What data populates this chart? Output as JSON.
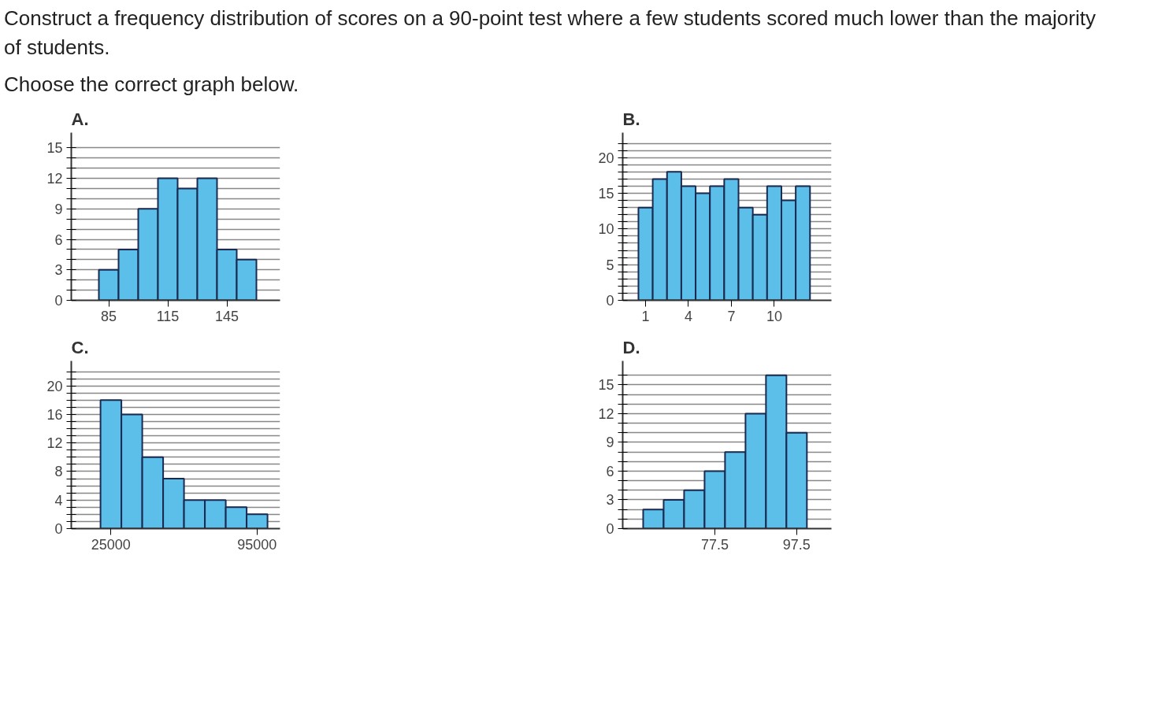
{
  "chart_data": [
    {
      "type": "histogram",
      "title": "A.",
      "annotations": [
        "Construct a frequency distribution of scores on a 90-point test where a few students scored much lower than the majority of students.",
        "Choose the correct graph below."
      ],
      "bins": [
        80,
        90,
        100,
        110,
        120,
        130,
        140,
        150,
        160
      ],
      "values": [
        3,
        5,
        9,
        12,
        11,
        12,
        5,
        4
      ],
      "color": "#5bbfea",
      "xlim": [
        66,
        172
      ],
      "xticks": [
        85,
        115,
        145
      ],
      "ylim": [
        0,
        16.5
      ],
      "yticks": [
        0,
        {
          "value": 1,
          "label": null
        },
        {
          "value": 2,
          "label": null
        },
        3,
        {
          "value": 4,
          "label": null
        },
        {
          "value": 5,
          "label": null
        },
        6,
        {
          "value": 7,
          "label": null
        },
        {
          "value": 8,
          "label": null
        },
        9,
        {
          "value": 10,
          "label": null
        },
        {
          "value": 11,
          "label": null
        },
        12,
        {
          "value": 13,
          "label": null
        },
        {
          "value": 14,
          "label": null
        },
        15
      ],
      "grid": "y"
    },
    {
      "type": "histogram",
      "title": "B.",
      "bins": [
        0.5,
        1.5,
        2.5,
        3.5,
        4.5,
        5.5,
        6.5,
        7.5,
        8.5,
        9.5,
        10.5,
        11.5,
        12.5
      ],
      "values": [
        13,
        17,
        18,
        16,
        15,
        16,
        17,
        13,
        12,
        16,
        14,
        16
      ],
      "color": "#5bbfea",
      "xlim": [
        -0.6,
        14
      ],
      "xticks": [
        1,
        4,
        7,
        10
      ],
      "ylim": [
        0,
        23.5
      ],
      "yticks": [
        0,
        {
          "value": 1,
          "label": null
        },
        {
          "value": 2,
          "label": null
        },
        {
          "value": 3,
          "label": null
        },
        {
          "value": 4,
          "label": null
        },
        5,
        {
          "value": 6,
          "label": null
        },
        {
          "value": 7,
          "label": null
        },
        {
          "value": 8,
          "label": null
        },
        {
          "value": 9,
          "label": null
        },
        10,
        {
          "value": 11,
          "label": null
        },
        {
          "value": 12,
          "label": null
        },
        {
          "value": 13,
          "label": null
        },
        {
          "value": 14,
          "label": null
        },
        15,
        {
          "value": 16,
          "label": null
        },
        {
          "value": 17,
          "label": null
        },
        {
          "value": 18,
          "label": null
        },
        {
          "value": 19,
          "label": null
        },
        20,
        {
          "value": 21,
          "label": null
        },
        {
          "value": 22,
          "label": null
        }
      ],
      "grid": "y"
    },
    {
      "type": "histogram",
      "title": "C.",
      "bins": [
        20000,
        30000,
        40000,
        50000,
        60000,
        70000,
        80000,
        90000,
        100000
      ],
      "values": [
        18,
        16,
        10,
        7,
        4,
        4,
        3,
        2
      ],
      "color": "#5bbfea",
      "xlim": [
        6000,
        106000
      ],
      "xticks": [
        25000,
        95000
      ],
      "ylim": [
        0,
        23.5
      ],
      "yticks": [
        0,
        {
          "value": 1,
          "label": null
        },
        {
          "value": 2,
          "label": null
        },
        {
          "value": 3,
          "label": null
        },
        4,
        {
          "value": 5,
          "label": null
        },
        {
          "value": 6,
          "label": null
        },
        {
          "value": 7,
          "label": null
        },
        8,
        {
          "value": 9,
          "label": null
        },
        {
          "value": 10,
          "label": null
        },
        {
          "value": 11,
          "label": null
        },
        12,
        {
          "value": 13,
          "label": null
        },
        {
          "value": 14,
          "label": null
        },
        {
          "value": 15,
          "label": null
        },
        16,
        {
          "value": 17,
          "label": null
        },
        {
          "value": 18,
          "label": null
        },
        {
          "value": 19,
          "label": null
        },
        20,
        {
          "value": 21,
          "label": null
        },
        {
          "value": 22,
          "label": null
        }
      ],
      "grid": "y"
    },
    {
      "type": "histogram",
      "title": "D.",
      "bins": [
        60,
        65,
        70,
        75,
        80,
        85,
        90,
        95,
        100
      ],
      "values": [
        2,
        3,
        4,
        6,
        8,
        12,
        16,
        10
      ],
      "color": "#5bbfea",
      "xlim": [
        55,
        106
      ],
      "xticks": [
        77.5,
        97.5
      ],
      "ylim": [
        0,
        17.5
      ],
      "yticks": [
        0,
        {
          "value": 1,
          "label": null
        },
        {
          "value": 2,
          "label": null
        },
        3,
        {
          "value": 4,
          "label": null
        },
        {
          "value": 5,
          "label": null
        },
        6,
        {
          "value": 7,
          "label": null
        },
        {
          "value": 8,
          "label": null
        },
        9,
        {
          "value": 10,
          "label": null
        },
        {
          "value": 11,
          "label": null
        },
        12,
        {
          "value": 13,
          "label": null
        },
        {
          "value": 14,
          "label": null
        },
        15,
        {
          "value": 16,
          "label": null
        }
      ],
      "grid": "y"
    }
  ]
}
